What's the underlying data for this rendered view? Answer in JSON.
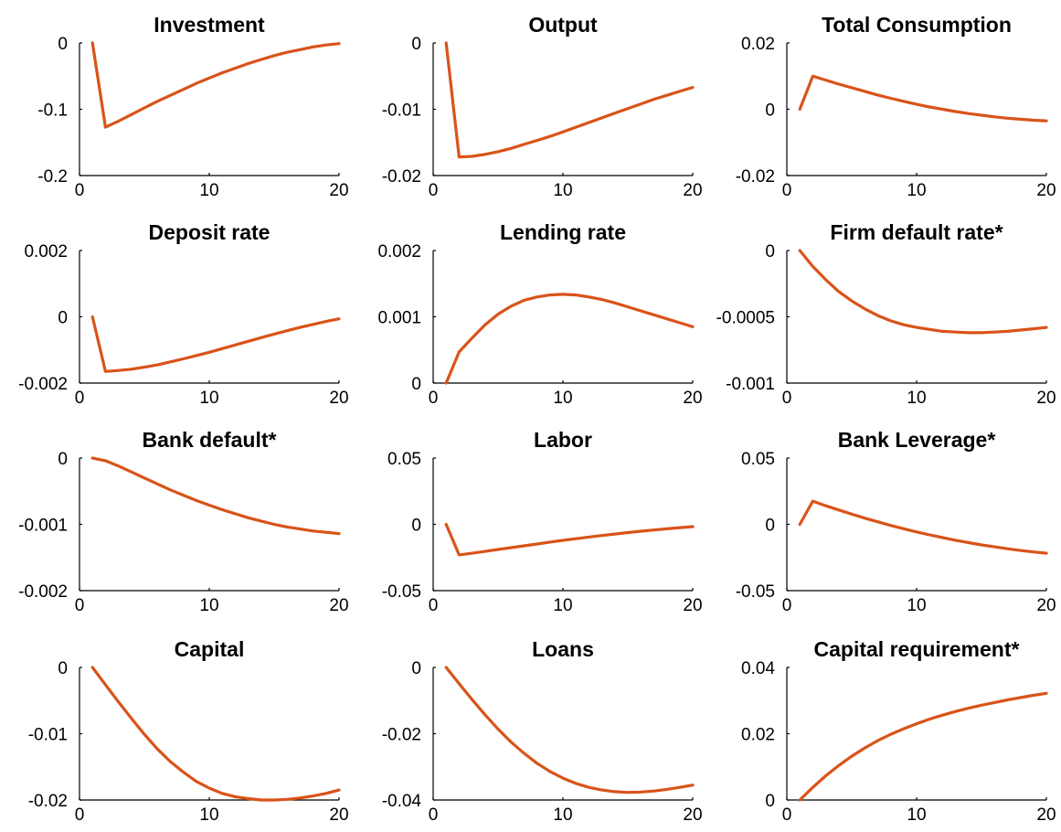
{
  "chart_data": [
    {
      "type": "line",
      "title": "Investment",
      "xlabel": "",
      "ylabel": "",
      "xlim": [
        0,
        20
      ],
      "xticks": [
        0,
        10,
        20
      ],
      "ylim": [
        -0.2,
        0
      ],
      "yticks": [
        -0.2,
        -0.1,
        0
      ],
      "ytick_labels": [
        "-0.2",
        "-0.1",
        "0"
      ],
      "grid": false,
      "line_color": "#D95319",
      "x": [
        1,
        2,
        3,
        4,
        5,
        6,
        7,
        8,
        9,
        10,
        11,
        12,
        13,
        14,
        15,
        16,
        17,
        18,
        19,
        20
      ],
      "values": [
        0,
        -0.127,
        -0.118,
        -0.108,
        -0.098,
        -0.088,
        -0.079,
        -0.07,
        -0.061,
        -0.053,
        -0.045,
        -0.038,
        -0.031,
        -0.025,
        -0.019,
        -0.014,
        -0.01,
        -0.006,
        -0.003,
        -0.001
      ]
    },
    {
      "type": "line",
      "title": "Output",
      "xlabel": "",
      "ylabel": "",
      "xlim": [
        0,
        20
      ],
      "xticks": [
        0,
        10,
        20
      ],
      "ylim": [
        -0.02,
        0
      ],
      "yticks": [
        -0.02,
        -0.01,
        0
      ],
      "ytick_labels": [
        "-0.02",
        "-0.01",
        "0"
      ],
      "grid": false,
      "line_color": "#D95319",
      "x": [
        1,
        2,
        3,
        4,
        5,
        6,
        7,
        8,
        9,
        10,
        11,
        12,
        13,
        14,
        15,
        16,
        17,
        18,
        19,
        20
      ],
      "values": [
        0,
        -0.0172,
        -0.0171,
        -0.0168,
        -0.0164,
        -0.0159,
        -0.0153,
        -0.0147,
        -0.0141,
        -0.0134,
        -0.0127,
        -0.012,
        -0.0113,
        -0.0106,
        -0.0099,
        -0.0092,
        -0.0085,
        -0.0079,
        -0.0073,
        -0.0067
      ]
    },
    {
      "type": "line",
      "title": "Total Consumption",
      "xlabel": "",
      "ylabel": "",
      "xlim": [
        0,
        20
      ],
      "xticks": [
        0,
        10,
        20
      ],
      "ylim": [
        -0.02,
        0.02
      ],
      "yticks": [
        -0.02,
        0,
        0.02
      ],
      "ytick_labels": [
        "-0.02",
        "0",
        "0.02"
      ],
      "grid": false,
      "line_color": "#D95319",
      "x": [
        1,
        2,
        3,
        4,
        5,
        6,
        7,
        8,
        9,
        10,
        11,
        12,
        13,
        14,
        15,
        16,
        17,
        18,
        19,
        20
      ],
      "values": [
        0,
        0.01,
        0.0088,
        0.0076,
        0.0065,
        0.0054,
        0.0043,
        0.0033,
        0.0024,
        0.0015,
        0.0007,
        0.0,
        -0.0007,
        -0.0013,
        -0.0018,
        -0.0023,
        -0.0027,
        -0.003,
        -0.0033,
        -0.0035
      ]
    },
    {
      "type": "line",
      "title": "Deposit rate",
      "xlabel": "",
      "ylabel": "",
      "xlim": [
        0,
        20
      ],
      "xticks": [
        0,
        10,
        20
      ],
      "ylim": [
        -0.002,
        0.002
      ],
      "yticks": [
        -0.002,
        0,
        0.002
      ],
      "ytick_labels": [
        "-0.002",
        "0",
        "0.002"
      ],
      "grid": false,
      "line_color": "#D95319",
      "x": [
        1,
        2,
        3,
        4,
        5,
        6,
        7,
        8,
        9,
        10,
        11,
        12,
        13,
        14,
        15,
        16,
        17,
        18,
        19,
        20
      ],
      "values": [
        0,
        -0.00165,
        -0.00162,
        -0.00158,
        -0.00152,
        -0.00145,
        -0.00136,
        -0.00127,
        -0.00117,
        -0.00107,
        -0.00096,
        -0.00085,
        -0.00074,
        -0.00063,
        -0.00052,
        -0.00042,
        -0.00032,
        -0.00023,
        -0.00014,
        -6e-05
      ]
    },
    {
      "type": "line",
      "title": "Lending rate",
      "xlabel": "",
      "ylabel": "",
      "xlim": [
        0,
        20
      ],
      "xticks": [
        0,
        10,
        20
      ],
      "ylim": [
        0,
        0.002
      ],
      "yticks": [
        0,
        0.001,
        0.002
      ],
      "ytick_labels": [
        "0",
        "0.001",
        "0.002"
      ],
      "grid": false,
      "line_color": "#D95319",
      "x": [
        1,
        2,
        3,
        4,
        5,
        6,
        7,
        8,
        9,
        10,
        11,
        12,
        13,
        14,
        15,
        16,
        17,
        18,
        19,
        20
      ],
      "values": [
        0,
        0.00047,
        0.00068,
        0.00088,
        0.00104,
        0.00116,
        0.00125,
        0.0013,
        0.00133,
        0.00134,
        0.00133,
        0.0013,
        0.00126,
        0.00121,
        0.00115,
        0.00109,
        0.00103,
        0.00097,
        0.00091,
        0.00085
      ]
    },
    {
      "type": "line",
      "title": "Firm default rate*",
      "xlabel": "",
      "ylabel": "",
      "xlim": [
        0,
        20
      ],
      "xticks": [
        0,
        10,
        20
      ],
      "ylim": [
        -0.001,
        0
      ],
      "yticks": [
        -0.001,
        -0.0005,
        0
      ],
      "ytick_labels": [
        "-0.001",
        "-0.0005",
        "0"
      ],
      "grid": false,
      "line_color": "#D95319",
      "x": [
        1,
        2,
        3,
        4,
        5,
        6,
        7,
        8,
        9,
        10,
        11,
        12,
        13,
        14,
        15,
        16,
        17,
        18,
        19,
        20
      ],
      "values": [
        0,
        -0.00012,
        -0.00022,
        -0.00031,
        -0.00038,
        -0.00044,
        -0.00049,
        -0.00053,
        -0.00056,
        -0.00058,
        -0.000595,
        -0.00061,
        -0.000615,
        -0.00062,
        -0.00062,
        -0.000615,
        -0.00061,
        -0.0006,
        -0.00059,
        -0.00058
      ]
    },
    {
      "type": "line",
      "title": "Bank default*",
      "xlabel": "",
      "ylabel": "",
      "xlim": [
        0,
        20
      ],
      "xticks": [
        0,
        10,
        20
      ],
      "ylim": [
        -0.002,
        0
      ],
      "yticks": [
        -0.002,
        -0.001,
        0
      ],
      "ytick_labels": [
        "-0.002",
        "-0.001",
        "0"
      ],
      "grid": false,
      "line_color": "#D95319",
      "x": [
        1,
        2,
        3,
        4,
        5,
        6,
        7,
        8,
        9,
        10,
        11,
        12,
        13,
        14,
        15,
        16,
        17,
        18,
        19,
        20
      ],
      "values": [
        0,
        -4e-05,
        -0.00012,
        -0.00021,
        -0.0003,
        -0.00039,
        -0.00048,
        -0.00056,
        -0.00064,
        -0.00071,
        -0.00078,
        -0.00084,
        -0.0009,
        -0.00095,
        -0.001,
        -0.00104,
        -0.00107,
        -0.0011,
        -0.00112,
        -0.00114
      ]
    },
    {
      "type": "line",
      "title": "Labor",
      "xlabel": "",
      "ylabel": "",
      "xlim": [
        0,
        20
      ],
      "xticks": [
        0,
        10,
        20
      ],
      "ylim": [
        -0.05,
        0.05
      ],
      "yticks": [
        -0.05,
        0,
        0.05
      ],
      "ytick_labels": [
        "-0.05",
        "0",
        "0.05"
      ],
      "grid": false,
      "line_color": "#D95319",
      "x": [
        1,
        2,
        3,
        4,
        5,
        6,
        7,
        8,
        9,
        10,
        11,
        12,
        13,
        14,
        15,
        16,
        17,
        18,
        19,
        20
      ],
      "values": [
        0,
        -0.023,
        -0.0218,
        -0.0204,
        -0.019,
        -0.0176,
        -0.0162,
        -0.0148,
        -0.0134,
        -0.0121,
        -0.0108,
        -0.0096,
        -0.0084,
        -0.0073,
        -0.0062,
        -0.0052,
        -0.0043,
        -0.0034,
        -0.0025,
        -0.0017
      ]
    },
    {
      "type": "line",
      "title": "Bank Leverage*",
      "xlabel": "",
      "ylabel": "",
      "xlim": [
        0,
        20
      ],
      "xticks": [
        0,
        10,
        20
      ],
      "ylim": [
        -0.05,
        0.05
      ],
      "yticks": [
        -0.05,
        0,
        0.05
      ],
      "ytick_labels": [
        "-0.05",
        "0",
        "0.05"
      ],
      "grid": false,
      "line_color": "#D95319",
      "x": [
        1,
        2,
        3,
        4,
        5,
        6,
        7,
        8,
        9,
        10,
        11,
        12,
        13,
        14,
        15,
        16,
        17,
        18,
        19,
        20
      ],
      "values": [
        0,
        0.0175,
        0.014,
        0.0108,
        0.0077,
        0.0047,
        0.0019,
        -0.0008,
        -0.0033,
        -0.0057,
        -0.0079,
        -0.01,
        -0.012,
        -0.0138,
        -0.0155,
        -0.017,
        -0.0184,
        -0.0197,
        -0.0208,
        -0.0218
      ]
    },
    {
      "type": "line",
      "title": "Capital",
      "xlabel": "",
      "ylabel": "",
      "xlim": [
        0,
        20
      ],
      "xticks": [
        0,
        10,
        20
      ],
      "ylim": [
        -0.02,
        0
      ],
      "yticks": [
        -0.02,
        -0.01,
        0
      ],
      "ytick_labels": [
        "-0.02",
        "-0.01",
        "0"
      ],
      "grid": false,
      "line_color": "#D95319",
      "x": [
        1,
        2,
        3,
        4,
        5,
        6,
        7,
        8,
        9,
        10,
        11,
        12,
        13,
        14,
        15,
        16,
        17,
        18,
        19,
        20
      ],
      "values": [
        0,
        -0.0026,
        -0.0052,
        -0.0077,
        -0.0101,
        -0.0123,
        -0.0142,
        -0.0158,
        -0.0172,
        -0.0182,
        -0.019,
        -0.0195,
        -0.0198,
        -0.02,
        -0.02,
        -0.0199,
        -0.0197,
        -0.0194,
        -0.019,
        -0.0185
      ]
    },
    {
      "type": "line",
      "title": "Loans",
      "xlabel": "",
      "ylabel": "",
      "xlim": [
        0,
        20
      ],
      "xticks": [
        0,
        10,
        20
      ],
      "ylim": [
        -0.04,
        0
      ],
      "yticks": [
        -0.04,
        -0.02,
        0
      ],
      "ytick_labels": [
        "-0.04",
        "-0.02",
        "0"
      ],
      "grid": false,
      "line_color": "#D95319",
      "x": [
        1,
        2,
        3,
        4,
        5,
        6,
        7,
        8,
        9,
        10,
        11,
        12,
        13,
        14,
        15,
        16,
        17,
        18,
        19,
        20
      ],
      "values": [
        0,
        -0.0049,
        -0.0097,
        -0.0143,
        -0.0186,
        -0.0225,
        -0.0259,
        -0.0289,
        -0.0314,
        -0.0334,
        -0.035,
        -0.0362,
        -0.037,
        -0.0375,
        -0.0377,
        -0.0376,
        -0.0373,
        -0.0368,
        -0.0362,
        -0.0355
      ]
    },
    {
      "type": "line",
      "title": "Capital requirement*",
      "xlabel": "",
      "ylabel": "",
      "xlim": [
        0,
        20
      ],
      "xticks": [
        0,
        10,
        20
      ],
      "ylim": [
        0,
        0.04
      ],
      "yticks": [
        0,
        0.02,
        0.04
      ],
      "ytick_labels": [
        "0",
        "0.02",
        "0.04"
      ],
      "grid": false,
      "line_color": "#D95319",
      "x": [
        1,
        2,
        3,
        4,
        5,
        6,
        7,
        8,
        9,
        10,
        11,
        12,
        13,
        14,
        15,
        16,
        17,
        18,
        19,
        20
      ],
      "values": [
        0,
        0.0038,
        0.0073,
        0.0104,
        0.0132,
        0.0157,
        0.0179,
        0.0198,
        0.0215,
        0.023,
        0.0244,
        0.0256,
        0.0267,
        0.0277,
        0.0286,
        0.0294,
        0.0302,
        0.0309,
        0.0316,
        0.0322
      ]
    }
  ]
}
